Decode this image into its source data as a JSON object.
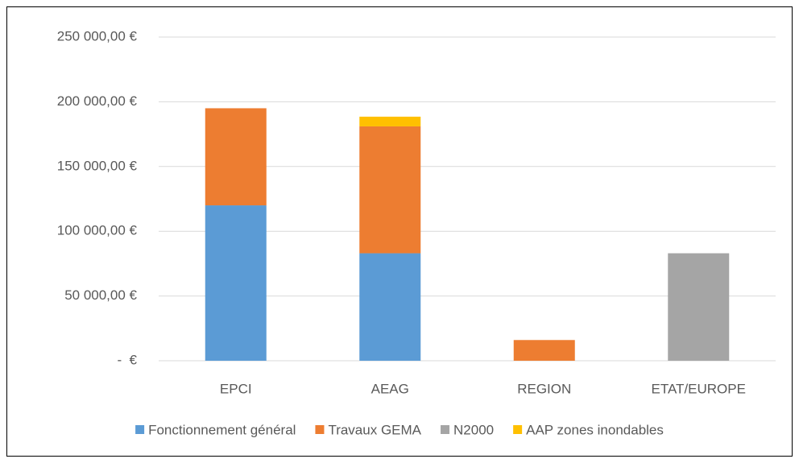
{
  "chart_data": {
    "type": "stacked_bar",
    "categories": [
      "EPCI",
      "AEAG",
      "REGION",
      "ETAT/EUROPE"
    ],
    "series": [
      {
        "name": "Fonctionnement général",
        "color": "#5b9bd5",
        "values": [
          120000,
          83000,
          null,
          null
        ]
      },
      {
        "name": "Travaux GEMA",
        "color": "#ed7d31",
        "values": [
          75000,
          98000,
          16000,
          null
        ]
      },
      {
        "name": "N2000",
        "color": "#a5a5a5",
        "values": [
          null,
          null,
          null,
          83000
        ]
      },
      {
        "name": "AAP zones inondables",
        "color": "#ffc000",
        "values": [
          null,
          7500,
          null,
          null
        ]
      }
    ],
    "ylim": [
      0,
      250000
    ],
    "yticks": [
      {
        "value": 0,
        "label": "-  €"
      },
      {
        "value": 50000,
        "label": "50 000,00 €"
      },
      {
        "value": 100000,
        "label": "100 000,00 €"
      },
      {
        "value": 150000,
        "label": "150 000,00 €"
      },
      {
        "value": 200000,
        "label": "200 000,00 €"
      },
      {
        "value": 250000,
        "label": "250 000,00 €"
      }
    ],
    "grid": true,
    "legend": "bottom"
  }
}
